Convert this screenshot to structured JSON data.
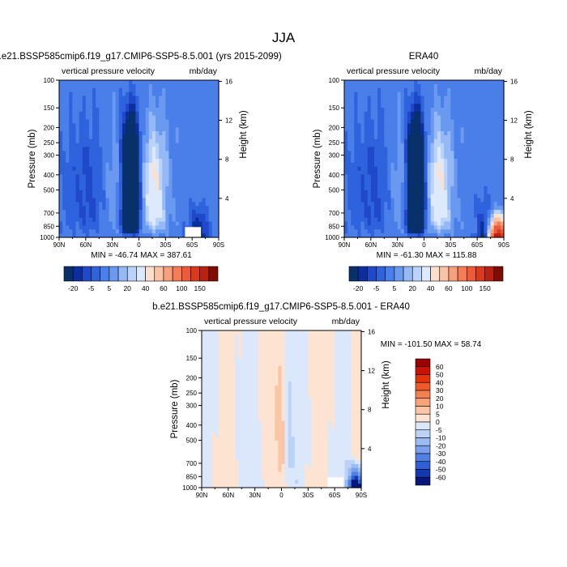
{
  "figure": {
    "title": "JJA"
  },
  "panels": [
    {
      "title": "b.e21.BSSP585cmip6.f19_g17.CMIP6-SSP5-8.5.001 (yrs 2015-2099)",
      "left_label": "vertical pressure velocity",
      "right_label": "mb/day",
      "stats": "MIN = -46.74   MAX = 387.61"
    },
    {
      "title": "ERA40",
      "left_label": "vertical pressure velocity",
      "right_label": "mb/day",
      "stats": "MIN = -61.30   MAX = 115.88"
    },
    {
      "title": "b.e21.BSSP585cmip6.f19_g17.CMIP6-SSP5-8.5.001 - ERA40",
      "left_label": "vertical pressure velocity",
      "right_label": "mb/day",
      "stats": "MIN = -101.50  MAX =  58.74"
    }
  ],
  "axes": {
    "ylabel": "Pressure (mb)",
    "y2label": "Height (km)",
    "x_ticks": [
      "90N",
      "60N",
      "30N",
      "0",
      "30S",
      "60S",
      "90S"
    ],
    "x_tick_values": [
      90,
      60,
      30,
      0,
      -30,
      -60,
      -90
    ],
    "p_ticks": [
      100,
      150,
      200,
      250,
      300,
      400,
      500,
      700,
      850,
      1000
    ],
    "h_ticks": [
      16,
      12,
      8,
      4
    ]
  },
  "colorbars": {
    "main": {
      "labels": [
        "-20",
        "-5",
        "5",
        "20",
        "40",
        "60",
        "100",
        "150"
      ],
      "colors": [
        "#08306b",
        "#0c2fa0",
        "#1f49c9",
        "#2f63dd",
        "#4a7ee8",
        "#6a99f0",
        "#95b8f6",
        "#bcd3f9",
        "#dde9fc",
        "#fde0cd",
        "#fbc2a4",
        "#f8a07d",
        "#f47c57",
        "#ec5a37",
        "#d93a1e",
        "#b8220e",
        "#7f0c04"
      ]
    },
    "diff": {
      "labels": [
        "60",
        "50",
        "40",
        "30",
        "20",
        "10",
        "5",
        "0",
        "-5",
        "-10",
        "-20",
        "-30",
        "-40",
        "-50",
        "-60"
      ],
      "colors": [
        "#990000",
        "#cc1100",
        "#e5330b",
        "#f05a2a",
        "#f47f50",
        "#f8a37a",
        "#fbc6a6",
        "#fde3d1",
        "#dbe8fb",
        "#bcd3f8",
        "#9bbbf2",
        "#7a9fec",
        "#5180e2",
        "#2f5fd6",
        "#1238b0",
        "#06187a"
      ]
    }
  },
  "chart_data": [
    {
      "type": "heatmap",
      "title": "b.e21.BSSP585cmip6.f19_g17.CMIP6-SSP5-8.5.001 (yrs 2015-2099)",
      "subtitle_left": "vertical pressure velocity",
      "subtitle_right": "mb/day",
      "xlabel": "",
      "ylabel": "Pressure (mb)",
      "y2label": "Height (km)",
      "x_range": [
        90,
        -90
      ],
      "p_range": [
        100,
        1000
      ],
      "y_scale": "log",
      "min": -46.74,
      "max": 387.61,
      "levels": [
        -20,
        -5,
        5,
        20,
        40,
        60,
        100,
        150
      ],
      "field_features": [
        {
          "type": "ascent",
          "center_lat": 9,
          "half_width_deg": 8,
          "min": -46.74
        },
        {
          "type": "ascent",
          "center_lat": 55,
          "half_width_deg": 12,
          "min": -8
        },
        {
          "type": "descent",
          "center_lat": -17,
          "half_width_deg": 11,
          "max": 20
        },
        {
          "type": "descent",
          "center_lat": 25,
          "half_width_deg": 9,
          "max": 6
        },
        {
          "type": "ascent",
          "center_lat": -65,
          "half_width_deg": 9,
          "min": -25
        }
      ]
    },
    {
      "type": "heatmap",
      "title": "ERA40",
      "subtitle_left": "vertical pressure velocity",
      "subtitle_right": "mb/day",
      "xlabel": "",
      "ylabel": "Pressure (mb)",
      "y2label": "Height (km)",
      "x_range": [
        90,
        -90
      ],
      "p_range": [
        100,
        1000
      ],
      "y_scale": "log",
      "min": -61.3,
      "max": 115.88,
      "levels": [
        -20,
        -5,
        5,
        20,
        40,
        60,
        100,
        150
      ],
      "field_features": [
        {
          "type": "ascent",
          "center_lat": 9,
          "half_width_deg": 8,
          "min": -61.3
        },
        {
          "type": "descent",
          "center_lat": -17,
          "half_width_deg": 12,
          "max": 20
        },
        {
          "type": "descent",
          "center_lat": -80,
          "half_width_deg": 8,
          "max": 115.88
        }
      ]
    },
    {
      "type": "heatmap",
      "title": "b.e21.BSSP585cmip6.f19_g17.CMIP6-SSP5-8.5.001 - ERA40",
      "subtitle_left": "vertical pressure velocity",
      "subtitle_right": "mb/day",
      "xlabel": "",
      "ylabel": "Pressure (mb)",
      "y2label": "Height (km)",
      "x_range": [
        90,
        -90
      ],
      "p_range": [
        100,
        1000
      ],
      "y_scale": "log",
      "min": -101.5,
      "max": 58.74,
      "levels": [
        -60,
        -50,
        -40,
        -30,
        -20,
        -10,
        -5,
        0,
        5,
        10,
        20,
        30,
        40,
        50,
        60
      ],
      "field_features": [
        {
          "type": "positive",
          "center_lat": 1,
          "half_width_deg": 4,
          "max": 10
        },
        {
          "type": "negative",
          "center_lat": -7,
          "half_width_deg": 4,
          "min": -5
        },
        {
          "type": "negative",
          "center_lat": -82,
          "half_width_deg": 6,
          "min": -101.5
        }
      ]
    }
  ]
}
